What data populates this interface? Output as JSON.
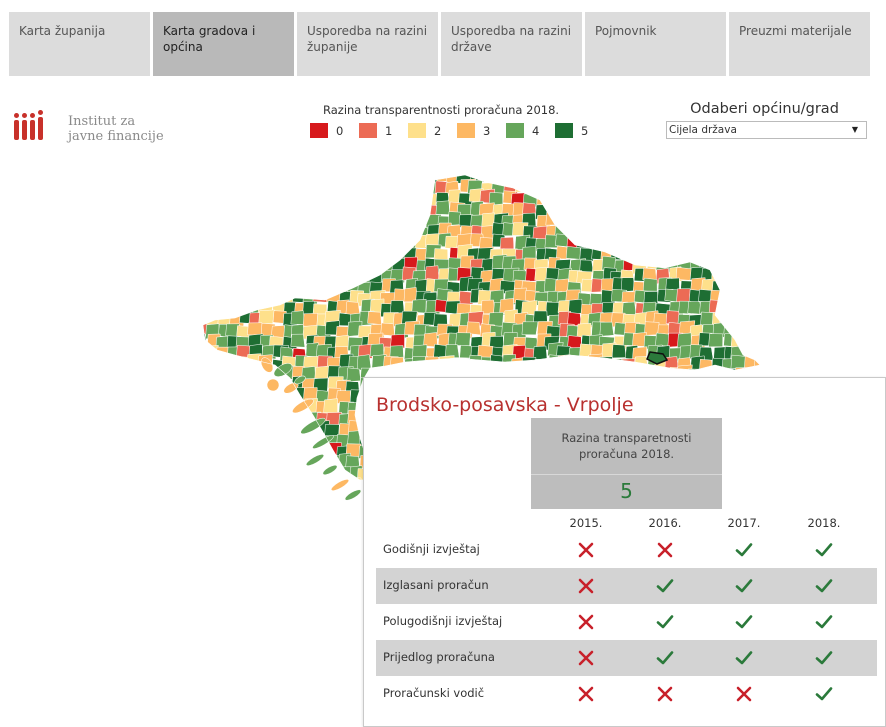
{
  "tabs": [
    {
      "label": "Karta županija",
      "active": false
    },
    {
      "label": "Karta gradova i općina",
      "active": true
    },
    {
      "label": "Usporedba na razini županije",
      "active": false
    },
    {
      "label": "Usporedba na razini države",
      "active": false
    },
    {
      "label": "Pojmovnik",
      "active": false
    },
    {
      "label": "Preuzmi materijale",
      "active": false
    }
  ],
  "logo": {
    "line1": "Institut za",
    "line2": "javne financije"
  },
  "legend": {
    "title": "Razina transparentnosti proračuna 2018.",
    "items": [
      {
        "label": "0",
        "color": "#d7191c"
      },
      {
        "label": "1",
        "color": "#ec6b55"
      },
      {
        "label": "2",
        "color": "#fee08b"
      },
      {
        "label": "3",
        "color": "#fdb863"
      },
      {
        "label": "4",
        "color": "#66a65b"
      },
      {
        "label": "5",
        "color": "#1e6e33"
      }
    ]
  },
  "selector": {
    "title": "Odaberi općinu/grad",
    "value": "Cijela država"
  },
  "tooltip": {
    "title": "Brodsko-posavska - Vrpolje",
    "score_label": "Razina transparetnosti proračuna  2018.",
    "score_value": "5",
    "years": [
      "2015.",
      "2016.",
      "2017.",
      "2018."
    ],
    "rows": [
      {
        "label": "Godišnji izvještaj",
        "marks": [
          "cross",
          "cross",
          "check",
          "check"
        ]
      },
      {
        "label": "Izglasani proračun",
        "marks": [
          "cross",
          "check",
          "check",
          "check"
        ]
      },
      {
        "label": "Polugodišnji izvještaj",
        "marks": [
          "cross",
          "check",
          "check",
          "check"
        ]
      },
      {
        "label": "Prijedlog proračuna",
        "marks": [
          "cross",
          "check",
          "check",
          "check"
        ]
      },
      {
        "label": "Proračunski vodič",
        "marks": [
          "cross",
          "cross",
          "cross",
          "check"
        ]
      }
    ]
  },
  "colors": {
    "check": "#2b7a3b",
    "cross": "#c8202a",
    "accent": "#b8312f"
  }
}
